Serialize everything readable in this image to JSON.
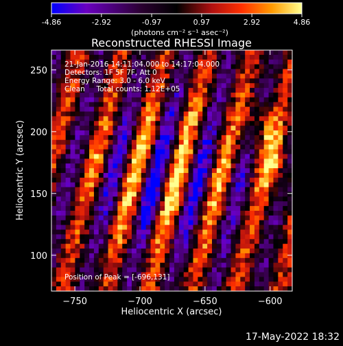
{
  "colorbar": {
    "ticks": [
      "-4.86",
      "-2.92",
      "-0.97",
      "0.97",
      "2.92",
      "4.86"
    ],
    "tick_values": [
      -4.86,
      -2.92,
      -0.97,
      0.97,
      2.92,
      4.86
    ],
    "range": [
      -4.86,
      4.86
    ],
    "unit_label": "(photons cm⁻² s⁻¹ asec⁻²)",
    "colormap": [
      "#0000ff",
      "#6a00c0",
      "#200020",
      "#000000",
      "#b01010",
      "#ff3000",
      "#ff9a00",
      "#ffff80"
    ]
  },
  "annotations": {
    "time_range": "21-Jan-2016 14:11:04.000 to 14:17:04.000",
    "detectors": "Detectors: 1F 5F 7F, Att 0",
    "energy": "Energy Range: 3.0 - 6.0 keV",
    "method": "Clean     Total counts: 1.12E+05",
    "peak": "Position of Peak = [-696,131]"
  },
  "footer": {
    "timestamp": "17-May-2022 18:32"
  },
  "chart_data": {
    "type": "heatmap",
    "title": "Reconstructed RHESSI Image",
    "xlabel": "Heliocentric X (arcsec)",
    "ylabel": "Heliocentric Y (arcsec)",
    "xlim": [
      -768,
      -583
    ],
    "ylim": [
      71,
      266
    ],
    "xticks": [
      -750,
      -700,
      -650,
      -600
    ],
    "yticks": [
      100,
      150,
      200,
      250
    ],
    "xtick_labels": [
      "−750",
      "−700",
      "−650",
      "−600"
    ],
    "ytick_labels": [
      "100",
      "150",
      "200",
      "250"
    ],
    "peak_position": [
      -696,
      131
    ],
    "value_range": [
      -4.86,
      4.86
    ],
    "grid": false,
    "legend": "none"
  }
}
